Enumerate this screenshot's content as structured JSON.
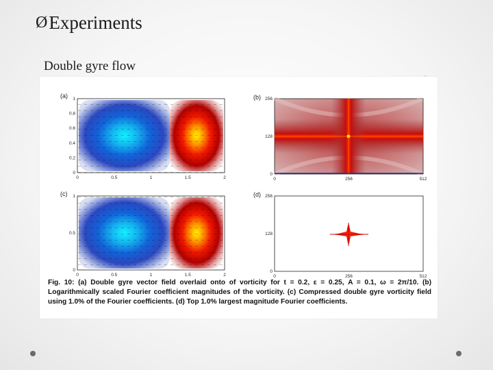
{
  "slide": {
    "title_marker": "Ø",
    "title": "Experiments",
    "subtitle": "Double gyre flow"
  },
  "figure": {
    "panels": [
      {
        "label": "(a)",
        "x_ticks": [
          "0",
          "0.5",
          "1",
          "1.5",
          "2"
        ],
        "y_ticks": [
          "0",
          "0.2",
          "0.4",
          "0.6",
          "0.8",
          "1"
        ]
      },
      {
        "label": "(b)",
        "x_ticks": [
          "0",
          "256",
          "512"
        ],
        "y_ticks": [
          "0",
          "128",
          "256"
        ]
      },
      {
        "label": "(c)",
        "x_ticks": [
          "0",
          "0.5",
          "1",
          "1.5",
          "2"
        ],
        "y_ticks": [
          "0",
          "0.5",
          "1"
        ]
      },
      {
        "label": "(d)",
        "x_ticks": [
          "0",
          "256",
          "512"
        ],
        "y_ticks": [
          "0",
          "128",
          "256"
        ]
      }
    ],
    "caption": "Fig. 10: (a) Double gyre vector field overlaid onto of vorticity for t = 0.2, ε = 0.25, A = 0.1, ω = 2π/10. (b) Logarithmically scaled Fourier coefficient magnitudes of the vorticity. (c) Compressed double gyre vorticity field using 1.0% of the Fourier coefficients. (d) Top 1.0% largest magnitude Fourier coefficients."
  }
}
